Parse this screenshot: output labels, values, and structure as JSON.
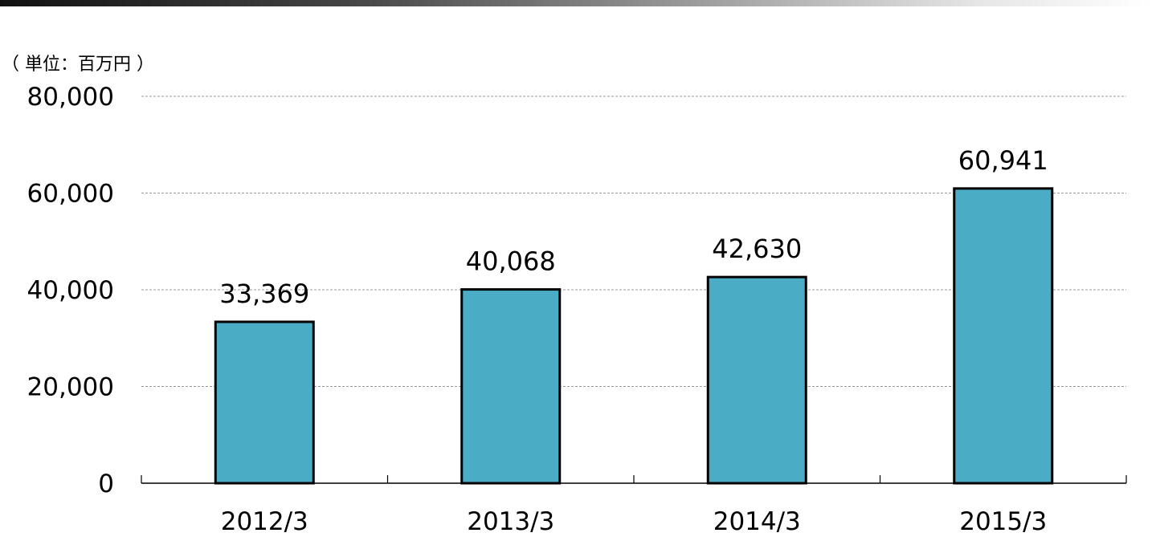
{
  "unit_label": "（ 単位：百万円 ）",
  "colors": {
    "bar": "#4BACC6",
    "bar_stroke": "#000000",
    "grid": "#999999"
  },
  "chart_data": {
    "type": "bar",
    "title": "",
    "xlabel": "",
    "ylabel": "",
    "categories": [
      "2012/3",
      "2013/3",
      "2014/3",
      "2015/3"
    ],
    "values": [
      33369,
      40068,
      42630,
      60941
    ],
    "data_labels": [
      "33,369",
      "40,068",
      "42,630",
      "60,941"
    ],
    "ylim": [
      0,
      80000
    ],
    "yticks": [
      0,
      20000,
      40000,
      60000,
      80000
    ],
    "ytick_labels": [
      "0",
      "20,000",
      "40,000",
      "60,000",
      "80,000"
    ],
    "grid": true,
    "legend": "none"
  }
}
